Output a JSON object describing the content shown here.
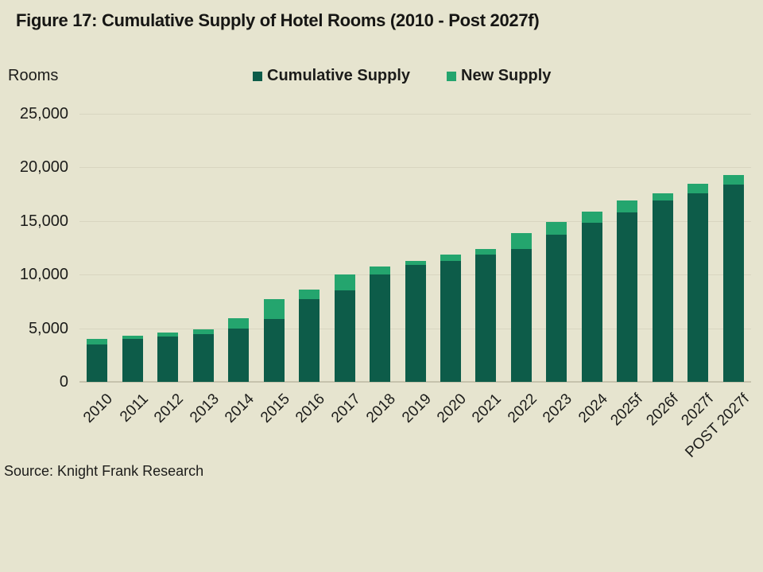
{
  "figure": {
    "title": "Figure 17: Cumulative Supply of Hotel Rooms (2010 - Post 2027f)",
    "source": "Source: Knight Frank Research"
  },
  "colors": {
    "background": "#e6e4cf",
    "cumulative_supply": "#0d5c49",
    "new_supply": "#24a56e",
    "gridline": "#d8d5c0",
    "axis_baseline": "#c6c3ad",
    "text": "#1c1c1a"
  },
  "chart_data": {
    "type": "bar",
    "stacked": true,
    "title": "Figure 17: Cumulative Supply of Hotel Rooms (2010 - Post 2027f)",
    "xlabel": "",
    "ylabel": "Rooms",
    "ylim": [
      0,
      25000
    ],
    "grid": true,
    "legend_position": "top",
    "yticks": [
      {
        "value": 0,
        "label": "0"
      },
      {
        "value": 5000,
        "label": "5,000"
      },
      {
        "value": 10000,
        "label": "10,000"
      },
      {
        "value": 15000,
        "label": "15,000"
      },
      {
        "value": 20000,
        "label": "20,000"
      },
      {
        "value": 25000,
        "label": "25,000"
      }
    ],
    "categories": [
      "2010",
      "2011",
      "2012",
      "2013",
      "2014",
      "2015",
      "2016",
      "2017",
      "2018",
      "2019",
      "2020",
      "2021",
      "2022",
      "2023",
      "2024",
      "2025f",
      "2026f",
      "2027f",
      "POST 2027f"
    ],
    "series": [
      {
        "name": "Cumulative Supply",
        "color": "#0d5c49",
        "values": [
          3500,
          4000,
          4250,
          4450,
          4950,
          5850,
          7700,
          8500,
          10000,
          10900,
          11300,
          11900,
          12400,
          13750,
          14850,
          15800,
          16900,
          17550,
          18400
        ]
      },
      {
        "name": "New Supply",
        "color": "#24a56e",
        "values": [
          500,
          300,
          350,
          450,
          950,
          1850,
          900,
          1550,
          750,
          350,
          600,
          500,
          1450,
          1150,
          1000,
          1100,
          700,
          950,
          900
        ]
      }
    ]
  }
}
